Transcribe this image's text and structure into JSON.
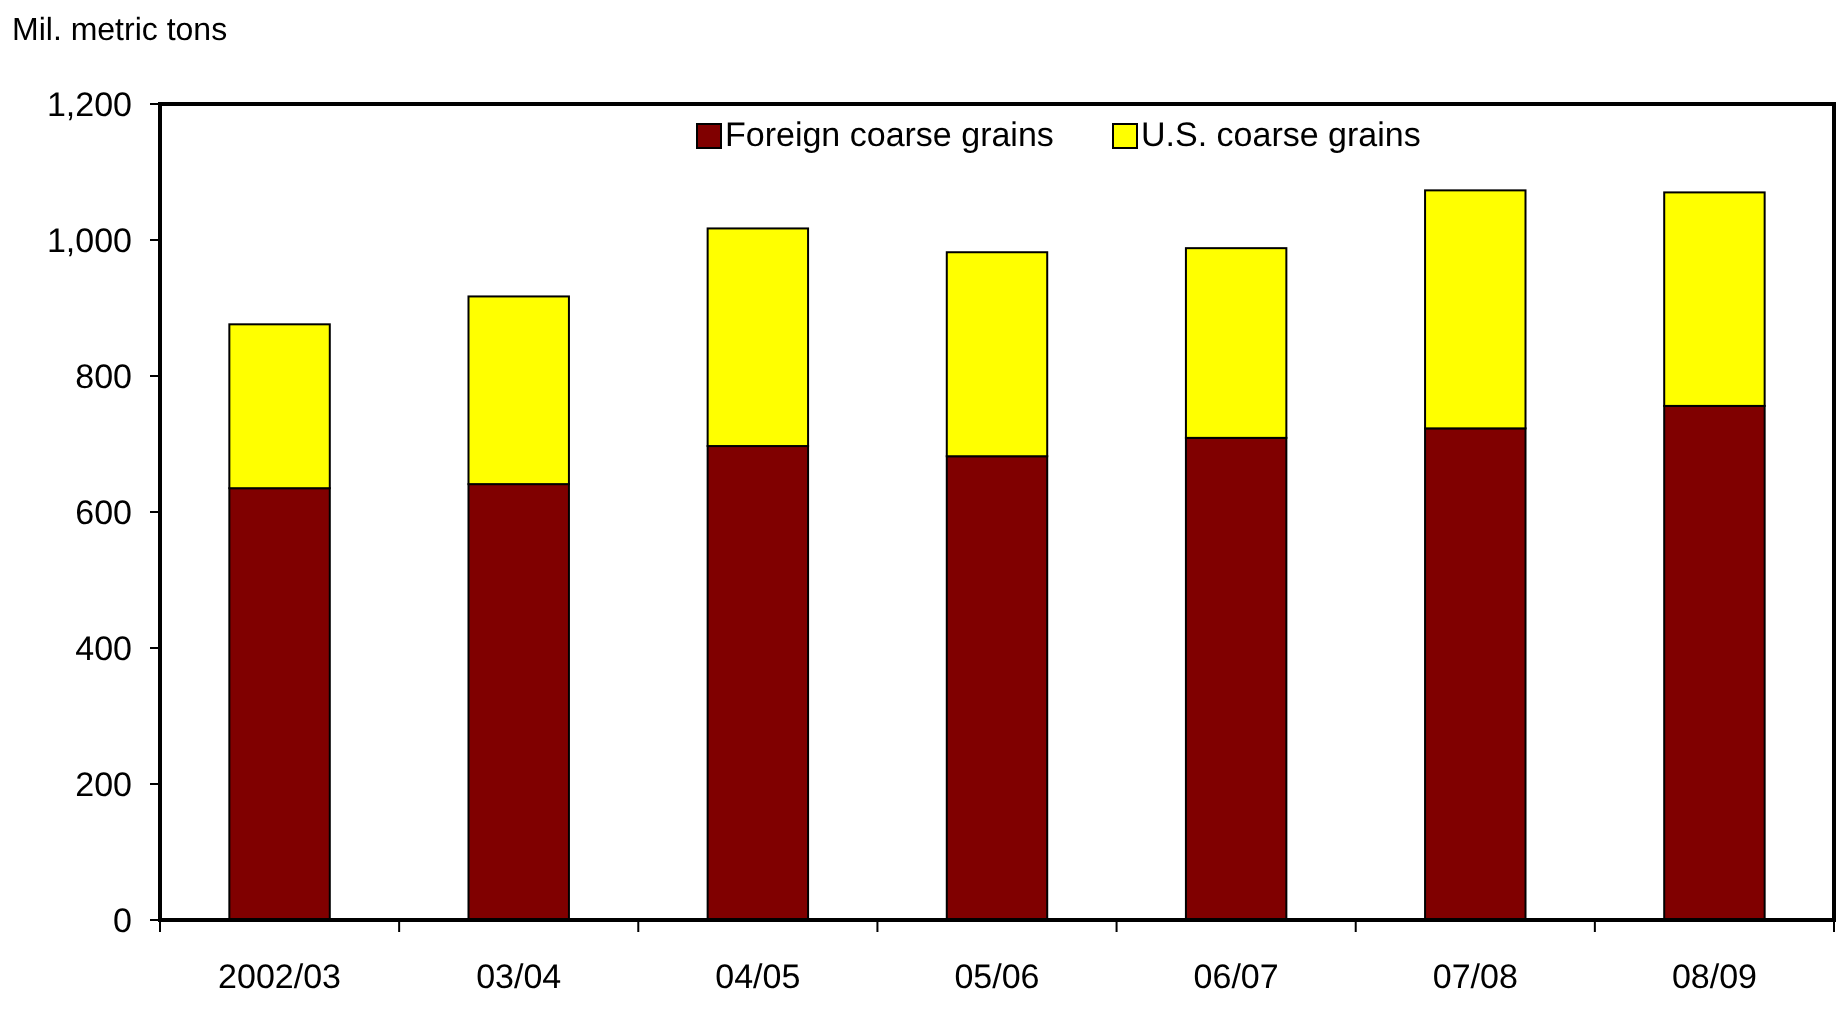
{
  "chart_data": {
    "type": "bar",
    "ylabel": "Mil. metric tons",
    "categories": [
      "2002/03",
      "03/04",
      "04/05",
      "05/06",
      "06/07",
      "07/08",
      "08/09"
    ],
    "stacked": true,
    "series": [
      {
        "name": "Foreign coarse grains",
        "color": "#800000",
        "values": [
          635,
          641,
          697,
          682,
          709,
          723,
          756
        ]
      },
      {
        "name": "U.S. coarse grains",
        "color": "#ffff00",
        "values": [
          241,
          276,
          320,
          300,
          279,
          350,
          314
        ]
      }
    ],
    "ylim": [
      0,
      1200
    ],
    "yticks": [
      0,
      {
        "value": 200,
        "label": "200"
      },
      {
        "value": 400,
        "label": "400"
      },
      {
        "value": 600,
        "label": "600"
      },
      {
        "value": 800,
        "label": "800"
      },
      {
        "value": 1000,
        "label": "1,000"
      },
      {
        "value": 1200,
        "label": "1,200"
      }
    ],
    "legend": "top",
    "grid": false
  }
}
